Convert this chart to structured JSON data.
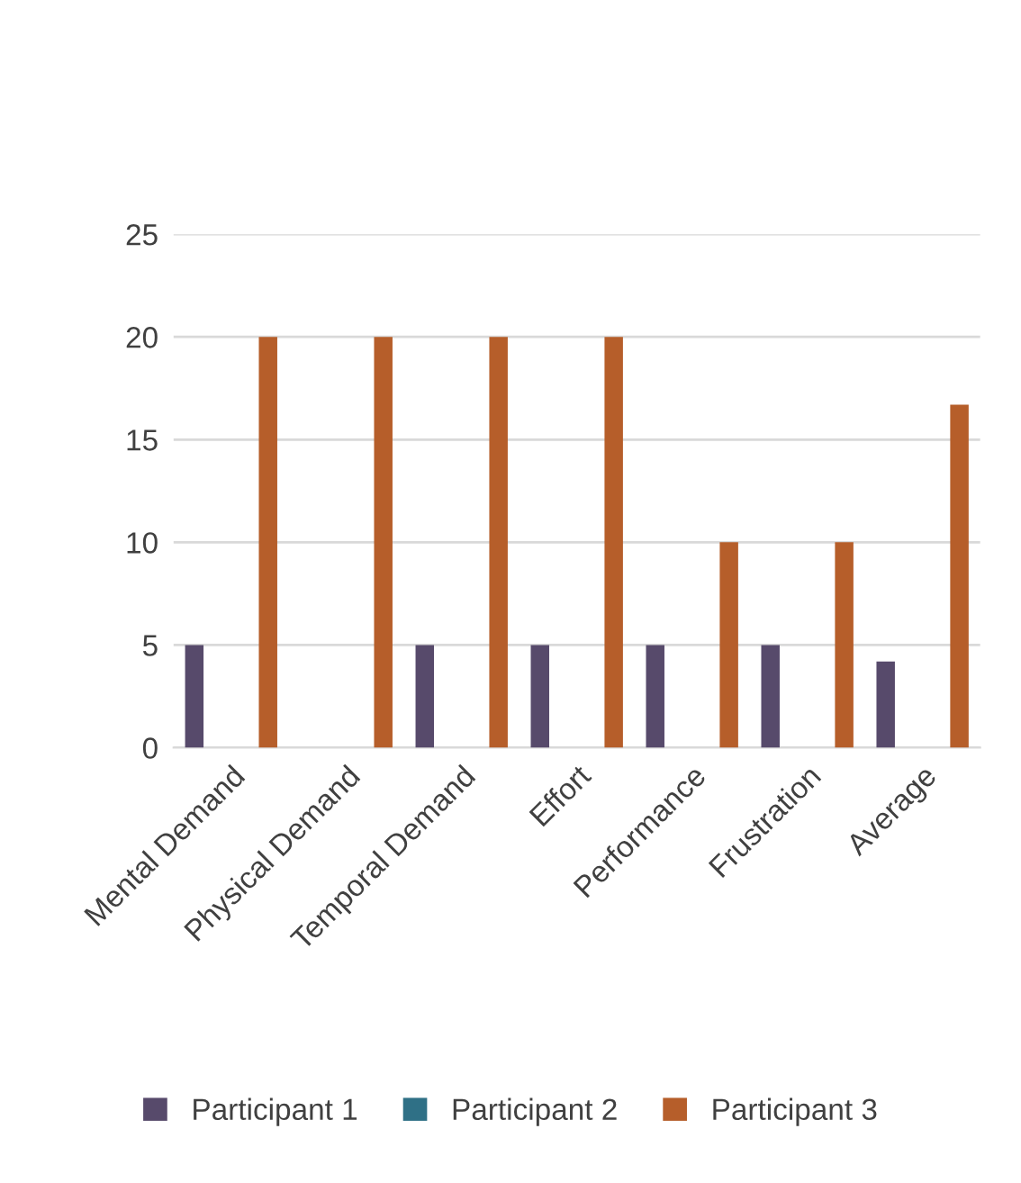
{
  "chart_data": {
    "type": "bar",
    "categories": [
      "Mental Demand",
      "Physical Demand",
      "Temporal Demand",
      "Effort",
      "Performance",
      "Frustration",
      "Average"
    ],
    "series": [
      {
        "name": "Participant 1",
        "color": "#574a6b",
        "values": [
          5,
          0,
          5,
          5,
          5,
          5,
          4.2
        ]
      },
      {
        "name": "Participant 2",
        "color": "#2f7086",
        "values": [
          0,
          0,
          0,
          0,
          0,
          0,
          0
        ]
      },
      {
        "name": "Participant 3",
        "color": "#b65e2a",
        "values": [
          20,
          20,
          20,
          20,
          10,
          10,
          16.7
        ]
      }
    ],
    "ylim": [
      0,
      25
    ],
    "yticks": [
      0,
      5,
      10,
      15,
      20,
      25
    ],
    "grid": "y",
    "legend": "bottom"
  }
}
